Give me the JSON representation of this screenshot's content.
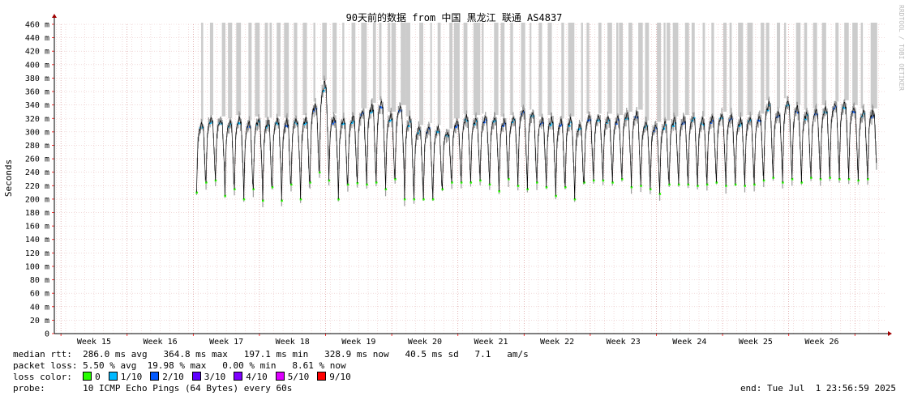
{
  "chart_data": {
    "type": "line",
    "title": "90天前的数据 from 中国 黑龙江 联通 AS4837",
    "ylabel": "Seconds",
    "watermark": "RRDTOOL / TOBI OETIKER",
    "ylim": [
      0,
      460
    ],
    "y_unit": "m",
    "y_ticks": [
      "0",
      "20 m",
      "40 m",
      "60 m",
      "80 m",
      "100 m",
      "120 m",
      "140 m",
      "160 m",
      "180 m",
      "200 m",
      "220 m",
      "240 m",
      "260 m",
      "280 m",
      "300 m",
      "320 m",
      "340 m",
      "360 m",
      "380 m",
      "400 m",
      "420 m",
      "440 m",
      "460 m"
    ],
    "y_tick_values": [
      0,
      20,
      40,
      60,
      80,
      100,
      120,
      140,
      160,
      180,
      200,
      220,
      240,
      260,
      280,
      300,
      320,
      340,
      360,
      380,
      400,
      420,
      440,
      460
    ],
    "x_ticks": [
      "Week 15",
      "Week 16",
      "Week 17",
      "Week 18",
      "Week 19",
      "Week 20",
      "Week 21",
      "Week 22",
      "Week 23",
      "Week 24",
      "Week 25",
      "Week 26"
    ],
    "data_start_week": 16.55,
    "x_end_week": 26.95,
    "days": [
      {
        "high": 312,
        "low": 210,
        "loss": 0.0
      },
      {
        "high": 320,
        "low": 225,
        "loss": 0.1
      },
      {
        "high": 318,
        "low": 228,
        "loss": 0.0
      },
      {
        "high": 315,
        "low": 205,
        "loss": 0.1
      },
      {
        "high": 320,
        "low": 215,
        "loss": 0.0
      },
      {
        "high": 312,
        "low": 200,
        "loss": 0.2
      },
      {
        "high": 318,
        "low": 215,
        "loss": 0.0
      },
      {
        "high": 316,
        "low": 198,
        "loss": 0.1
      },
      {
        "high": 318,
        "low": 218,
        "loss": 0.0
      },
      {
        "high": 316,
        "low": 198,
        "loss": 0.2
      },
      {
        "high": 318,
        "low": 222,
        "loss": 0.1
      },
      {
        "high": 320,
        "low": 200,
        "loss": 0.0
      },
      {
        "high": 340,
        "low": 225,
        "loss": 0.2
      },
      {
        "high": 372,
        "low": 240,
        "loss": 0.1
      },
      {
        "high": 322,
        "low": 228,
        "loss": 0.2
      },
      {
        "high": 318,
        "low": 200,
        "loss": 0.1
      },
      {
        "high": 320,
        "low": 222,
        "loss": 0.1
      },
      {
        "high": 330,
        "low": 224,
        "loss": 0.2
      },
      {
        "high": 338,
        "low": 222,
        "loss": 0.1
      },
      {
        "high": 342,
        "low": 225,
        "loss": 0.2
      },
      {
        "high": 325,
        "low": 215,
        "loss": 0.1
      },
      {
        "high": 335,
        "low": 230,
        "loss": 0.2
      },
      {
        "high": 318,
        "low": 200,
        "loss": 0.1
      },
      {
        "high": 305,
        "low": 200,
        "loss": 0.1
      },
      {
        "high": 308,
        "low": 200,
        "loss": 0.2
      },
      {
        "high": 305,
        "low": 200,
        "loss": 0.1
      },
      {
        "high": 300,
        "low": 215,
        "loss": 0.1
      },
      {
        "high": 315,
        "low": 225,
        "loss": 0.2
      },
      {
        "high": 322,
        "low": 225,
        "loss": 0.1
      },
      {
        "high": 320,
        "low": 225,
        "loss": 0.1
      },
      {
        "high": 322,
        "low": 228,
        "loss": 0.2
      },
      {
        "high": 320,
        "low": 222,
        "loss": 0.1
      },
      {
        "high": 318,
        "low": 212,
        "loss": 0.2
      },
      {
        "high": 320,
        "low": 230,
        "loss": 0.1
      },
      {
        "high": 332,
        "low": 220,
        "loss": 0.2
      },
      {
        "high": 328,
        "low": 215,
        "loss": 0.1
      },
      {
        "high": 318,
        "low": 225,
        "loss": 0.2
      },
      {
        "high": 320,
        "low": 218,
        "loss": 0.1
      },
      {
        "high": 315,
        "low": 205,
        "loss": 0.2
      },
      {
        "high": 318,
        "low": 218,
        "loss": 0.1
      },
      {
        "high": 310,
        "low": 200,
        "loss": 0.1
      },
      {
        "high": 322,
        "low": 225,
        "loss": 0.2
      },
      {
        "high": 322,
        "low": 228,
        "loss": 0.1
      },
      {
        "high": 322,
        "low": 228,
        "loss": 0.1
      },
      {
        "high": 320,
        "low": 225,
        "loss": 0.2
      },
      {
        "high": 325,
        "low": 230,
        "loss": 0.1
      },
      {
        "high": 328,
        "low": 218,
        "loss": 0.2
      },
      {
        "high": 312,
        "low": 220,
        "loss": 0.1
      },
      {
        "high": 310,
        "low": 215,
        "loss": 0.2
      },
      {
        "high": 312,
        "low": 208,
        "loss": 0.1
      },
      {
        "high": 318,
        "low": 222,
        "loss": 0.1
      },
      {
        "high": 320,
        "low": 222,
        "loss": 0.2
      },
      {
        "high": 322,
        "low": 222,
        "loss": 0.1
      },
      {
        "high": 318,
        "low": 220,
        "loss": 0.1
      },
      {
        "high": 320,
        "low": 222,
        "loss": 0.2
      },
      {
        "high": 325,
        "low": 225,
        "loss": 0.1
      },
      {
        "high": 322,
        "low": 220,
        "loss": 0.2
      },
      {
        "high": 318,
        "low": 222,
        "loss": 0.1
      },
      {
        "high": 320,
        "low": 220,
        "loss": 0.1
      },
      {
        "high": 322,
        "low": 222,
        "loss": 0.2
      },
      {
        "high": 342,
        "low": 228,
        "loss": 0.1
      },
      {
        "high": 330,
        "low": 232,
        "loss": 0.2
      },
      {
        "high": 345,
        "low": 225,
        "loss": 0.1
      },
      {
        "high": 335,
        "low": 230,
        "loss": 0.2
      },
      {
        "high": 328,
        "low": 225,
        "loss": 0.1
      },
      {
        "high": 330,
        "low": 232,
        "loss": 0.2
      },
      {
        "high": 335,
        "low": 230,
        "loss": 0.1
      },
      {
        "high": 340,
        "low": 232,
        "loss": 0.2
      },
      {
        "high": 342,
        "low": 230,
        "loss": 0.1
      },
      {
        "high": 335,
        "low": 230,
        "loss": 0.2
      },
      {
        "high": 330,
        "low": 228,
        "loss": 0.1
      },
      {
        "high": 330,
        "low": 230,
        "loss": 0.2
      }
    ],
    "loss_gaps_note": ""
  },
  "legend": {
    "median_label": "median rtt:",
    "median_values": "286.0 ms avg   364.8 ms max   197.1 ms min   328.9 ms now   40.5 ms sd   7.1   am/s",
    "loss_label": "packet loss:",
    "loss_values": "5.50 % avg  19.98 % max   0.00 % min   8.61 % now",
    "color_label": "loss color:",
    "colors": [
      {
        "label": "0",
        "color": "#26ff00"
      },
      {
        "label": "1/10",
        "color": "#00b8ff"
      },
      {
        "label": "2/10",
        "color": "#0059ff"
      },
      {
        "label": "3/10",
        "color": "#5e00ff"
      },
      {
        "label": "4/10",
        "color": "#7e00ff"
      },
      {
        "label": "5/10",
        "color": "#dd00ff"
      },
      {
        "label": "9/10",
        "color": "#ff0000"
      }
    ],
    "probe_label": "probe:",
    "probe_value": "10 ICMP Echo Pings (64 Bytes) every 60s",
    "end_label": "end: Tue Jul  1 23:56:59 2025"
  }
}
